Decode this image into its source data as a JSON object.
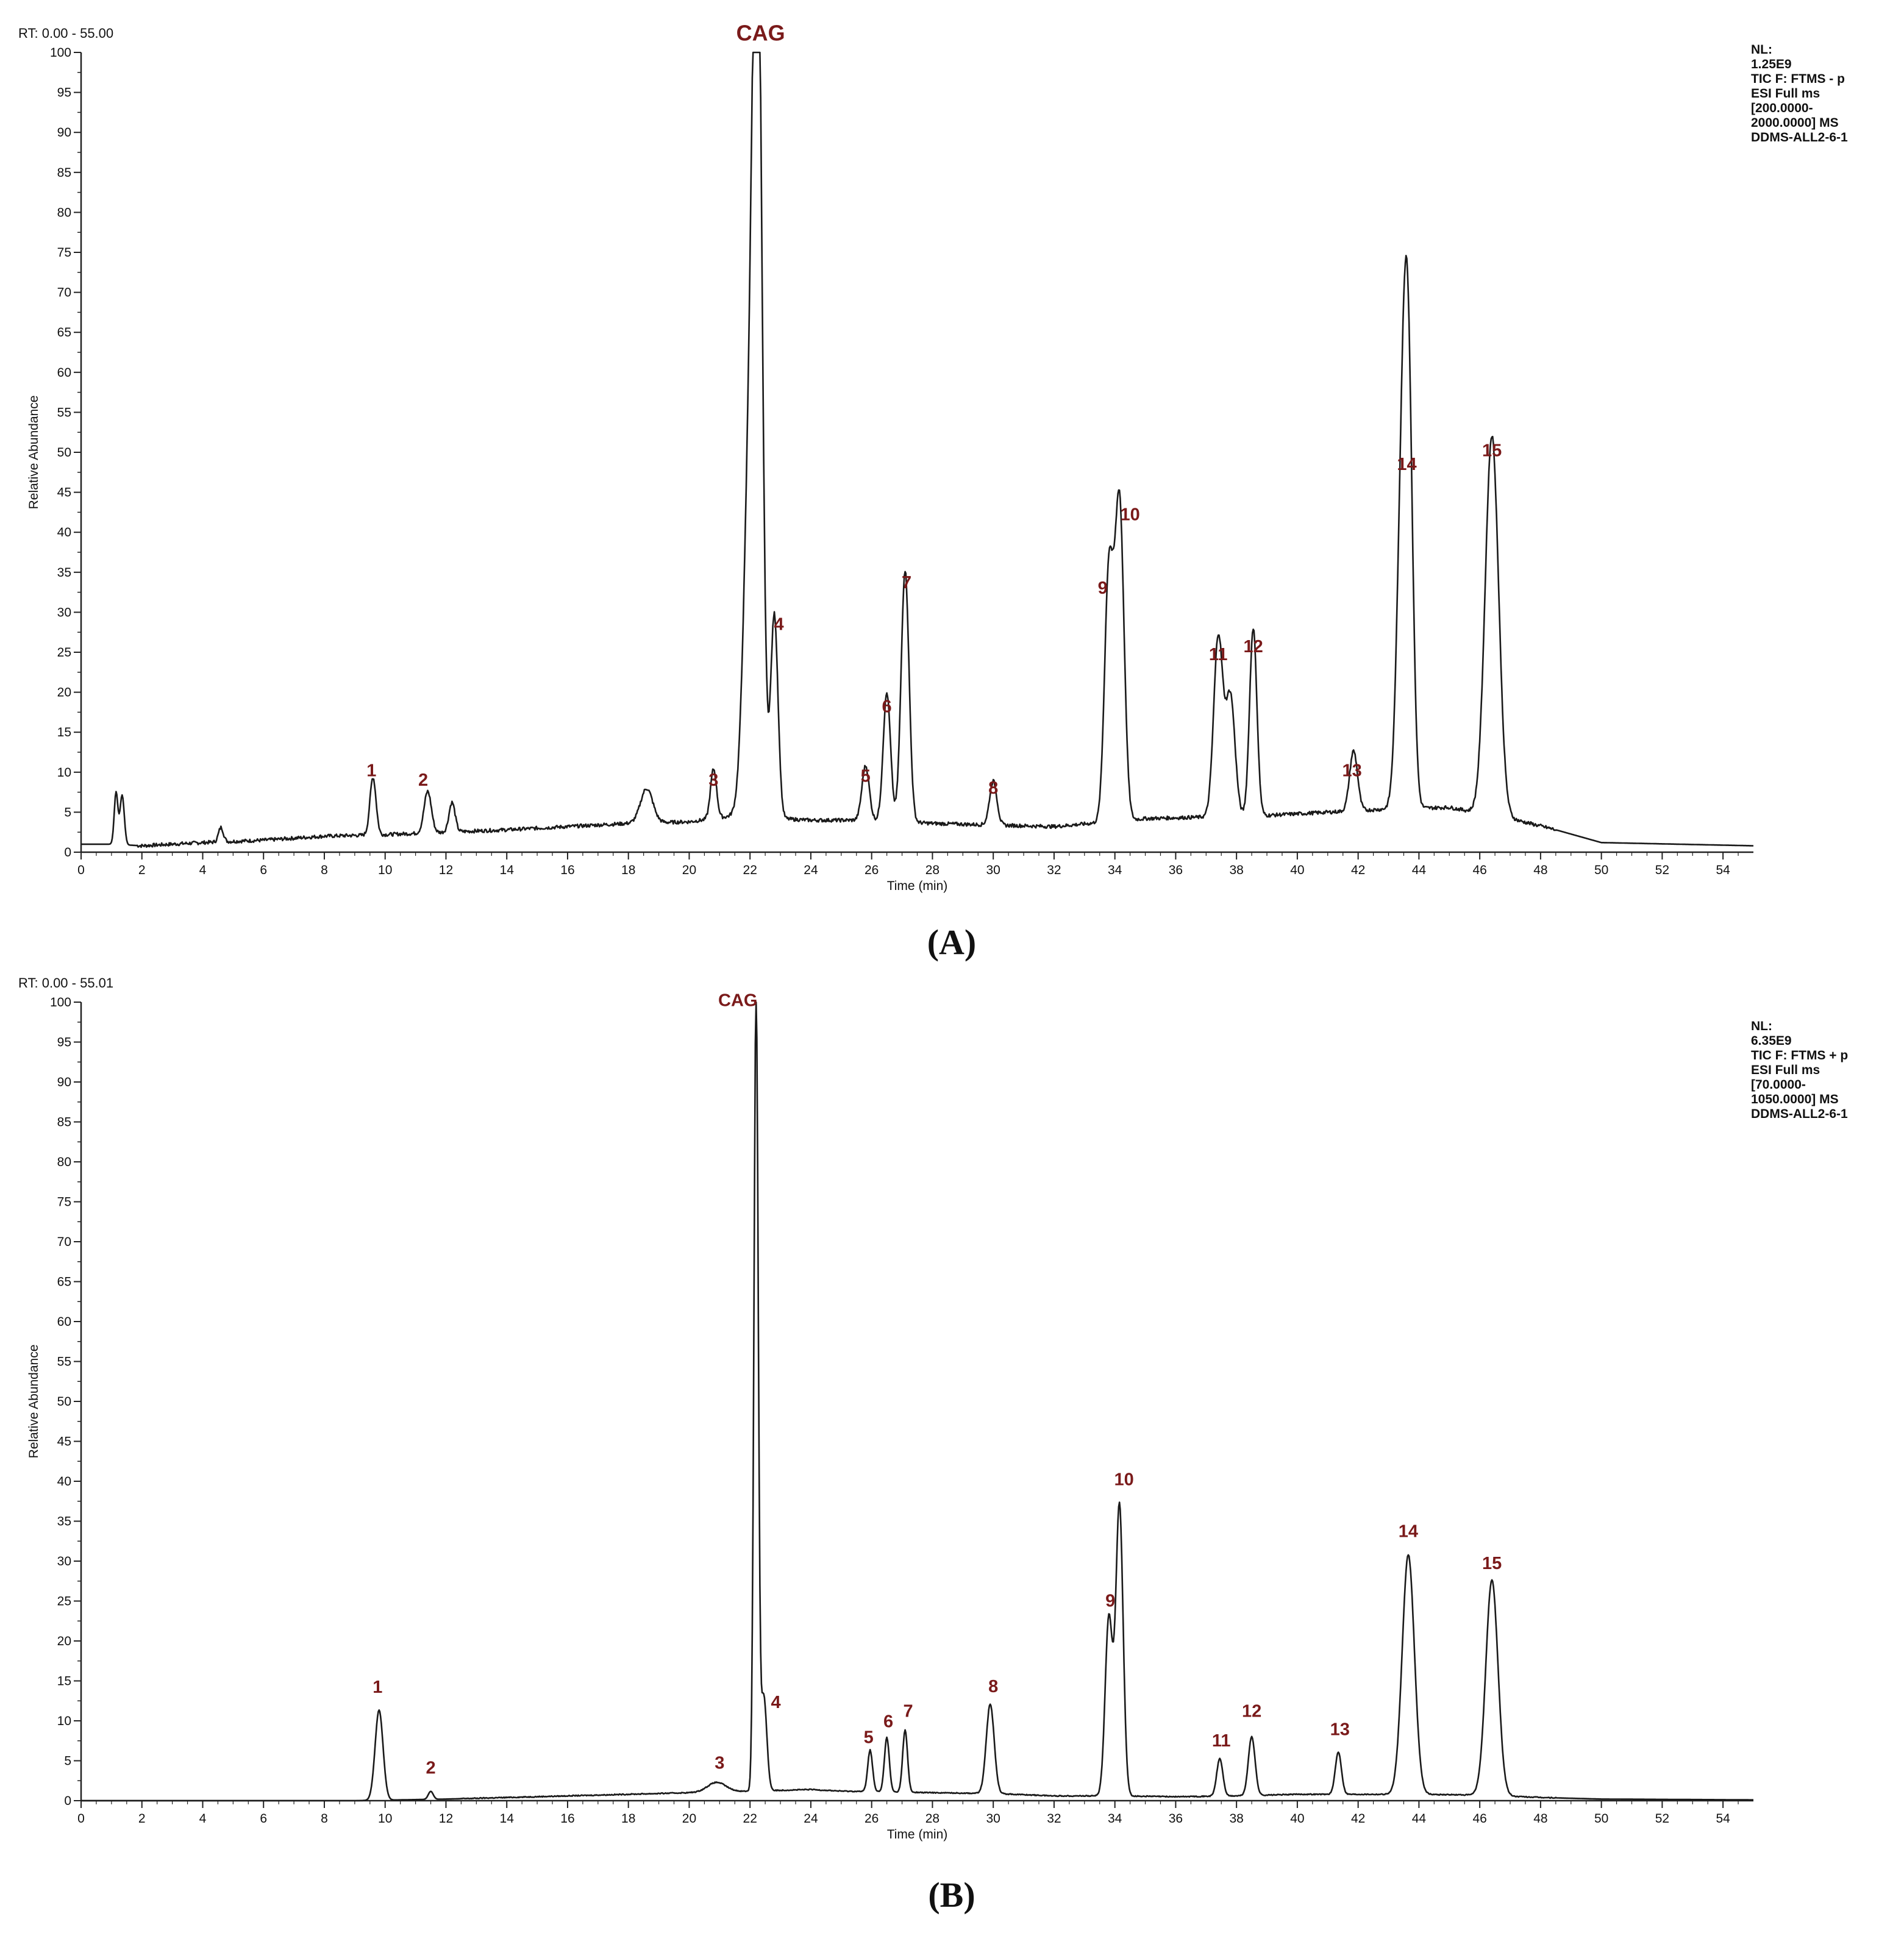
{
  "colors": {
    "trace": "#1a1a1a",
    "axis": "#222222",
    "peak_label": "#7a1a1a",
    "background": "#ffffff"
  },
  "chart_data": [
    {
      "type": "line",
      "panel_label": "(A)",
      "rt_range": "RT: 0.00 - 55.00",
      "info": [
        "NL:",
        "1.25E9",
        "TIC F: FTMS - p",
        "ESI Full ms",
        "[200.0000-",
        "2000.0000] MS",
        "DDMS-ALL2-6-1"
      ],
      "xlabel": "Time (min)",
      "ylabel": "Relative Abundance",
      "xlim": [
        0,
        55
      ],
      "ylim": [
        0,
        100
      ],
      "x_ticks": [
        0,
        2,
        4,
        6,
        8,
        10,
        12,
        14,
        16,
        18,
        20,
        22,
        24,
        26,
        28,
        30,
        32,
        34,
        36,
        38,
        40,
        42,
        44,
        46,
        48,
        50,
        52,
        54
      ],
      "y_ticks": [
        0,
        5,
        10,
        15,
        20,
        25,
        30,
        35,
        40,
        45,
        50,
        55,
        60,
        65,
        70,
        75,
        80,
        85,
        90,
        95,
        100
      ],
      "grid": false,
      "baseline": [
        [
          0,
          1.0
        ],
        [
          1.0,
          1.0
        ],
        [
          2.0,
          0.8
        ],
        [
          4,
          1.2
        ],
        [
          6,
          1.5
        ],
        [
          8,
          2.0
        ],
        [
          10,
          2.2
        ],
        [
          12,
          2.5
        ],
        [
          14,
          2.8
        ],
        [
          16,
          3.2
        ],
        [
          18,
          3.6
        ],
        [
          20,
          3.8
        ],
        [
          21.4,
          4.5
        ],
        [
          24,
          4.0
        ],
        [
          26,
          4.0
        ],
        [
          28,
          3.6
        ],
        [
          30,
          3.4
        ],
        [
          32,
          3.2
        ],
        [
          33.2,
          3.6
        ],
        [
          35,
          4.2
        ],
        [
          37,
          4.4
        ],
        [
          39,
          4.6
        ],
        [
          41,
          5.0
        ],
        [
          43,
          5.4
        ],
        [
          45,
          5.6
        ],
        [
          47,
          4.2
        ],
        [
          48.5,
          2.8
        ],
        [
          50,
          1.2
        ],
        [
          55,
          0.8
        ]
      ],
      "peaks": [
        {
          "rt": 1.15,
          "height": 6.5,
          "width": 0.06
        },
        {
          "rt": 1.35,
          "height": 6.2,
          "width": 0.07
        },
        {
          "rt": 4.6,
          "height": 1.8,
          "width": 0.08
        },
        {
          "rt": 9.6,
          "height": 7.2,
          "width": 0.1
        },
        {
          "rt": 11.4,
          "height": 5.2,
          "width": 0.12
        },
        {
          "rt": 12.2,
          "height": 3.7,
          "width": 0.1
        },
        {
          "rt": 18.6,
          "height": 4.3,
          "width": 0.2
        },
        {
          "rt": 20.8,
          "height": 6.2,
          "width": 0.1
        },
        {
          "rt": 22.0,
          "height": 45,
          "width": 0.2
        },
        {
          "rt": 22.25,
          "height": 100,
          "width": 0.15
        },
        {
          "rt": 22.8,
          "height": 25.5,
          "width": 0.12
        },
        {
          "rt": 25.8,
          "height": 6.8,
          "width": 0.12
        },
        {
          "rt": 26.5,
          "height": 16.0,
          "width": 0.12
        },
        {
          "rt": 27.1,
          "height": 31.5,
          "width": 0.13
        },
        {
          "rt": 30.0,
          "height": 5.5,
          "width": 0.12
        },
        {
          "rt": 33.8,
          "height": 31.0,
          "width": 0.14
        },
        {
          "rt": 34.15,
          "height": 40.0,
          "width": 0.15
        },
        {
          "rt": 37.4,
          "height": 22.5,
          "width": 0.15
        },
        {
          "rt": 37.8,
          "height": 15.0,
          "width": 0.15
        },
        {
          "rt": 38.55,
          "height": 23.5,
          "width": 0.12
        },
        {
          "rt": 41.85,
          "height": 7.5,
          "width": 0.13
        },
        {
          "rt": 43.45,
          "height": 38.0,
          "width": 0.17
        },
        {
          "rt": 43.65,
          "height": 45.5,
          "width": 0.15
        },
        {
          "rt": 46.4,
          "height": 47.5,
          "width": 0.22
        }
      ],
      "peak_labels": [
        {
          "text": "CAG",
          "rt": 22.35,
          "y": 101.5,
          "big": true
        },
        {
          "text": "1",
          "rt": 9.55,
          "y": 9.5
        },
        {
          "text": "2",
          "rt": 11.25,
          "y": 8.3
        },
        {
          "text": "3",
          "rt": 20.8,
          "y": 8.3
        },
        {
          "text": "4",
          "rt": 22.95,
          "y": 27.8
        },
        {
          "text": "5",
          "rt": 25.8,
          "y": 8.8
        },
        {
          "text": "6",
          "rt": 26.5,
          "y": 17.5
        },
        {
          "text": "7",
          "rt": 27.15,
          "y": 33.0
        },
        {
          "text": "8",
          "rt": 30.0,
          "y": 7.3
        },
        {
          "text": "9",
          "rt": 33.6,
          "y": 32.3
        },
        {
          "text": "10",
          "rt": 34.5,
          "y": 41.5
        },
        {
          "text": "11",
          "rt": 37.4,
          "y": 24.0
        },
        {
          "text": "12",
          "rt": 38.55,
          "y": 25.0
        },
        {
          "text": "13",
          "rt": 41.8,
          "y": 9.5
        },
        {
          "text": "14",
          "rt": 43.6,
          "y": 47.8
        },
        {
          "text": "15",
          "rt": 46.4,
          "y": 49.5
        }
      ]
    },
    {
      "type": "line",
      "panel_label": "(B)",
      "rt_range": "RT: 0.00 - 55.01",
      "info": [
        "NL:",
        "6.35E9",
        "TIC F: FTMS + p",
        "ESI Full ms",
        "[70.0000-",
        "1050.0000] MS",
        "DDMS-ALL2-6-1"
      ],
      "xlabel": "Time (min)",
      "ylabel": "Relative Abundance",
      "xlim": [
        0,
        55
      ],
      "ylim": [
        0,
        100
      ],
      "x_ticks": [
        0,
        2,
        4,
        6,
        8,
        10,
        12,
        14,
        16,
        18,
        20,
        22,
        24,
        26,
        28,
        30,
        32,
        34,
        36,
        38,
        40,
        42,
        44,
        46,
        48,
        50,
        52,
        54
      ],
      "y_ticks": [
        0,
        5,
        10,
        15,
        20,
        25,
        30,
        35,
        40,
        45,
        50,
        55,
        60,
        65,
        70,
        75,
        80,
        85,
        90,
        95,
        100
      ],
      "grid": false,
      "baseline": [
        [
          0,
          0
        ],
        [
          9.0,
          0
        ],
        [
          12,
          0.2
        ],
        [
          14,
          0.4
        ],
        [
          16,
          0.6
        ],
        [
          18,
          0.8
        ],
        [
          20,
          1.0
        ],
        [
          22,
          1.2
        ],
        [
          24,
          1.4
        ],
        [
          25,
          1.2
        ],
        [
          28,
          1.0
        ],
        [
          30,
          0.9
        ],
        [
          32,
          0.6
        ],
        [
          34,
          0.6
        ],
        [
          36,
          0.5
        ],
        [
          38,
          0.6
        ],
        [
          40,
          0.8
        ],
        [
          42,
          0.8
        ],
        [
          44,
          0.8
        ],
        [
          46,
          0.7
        ],
        [
          48,
          0.4
        ],
        [
          50,
          0.2
        ],
        [
          55,
          0.1
        ]
      ],
      "peaks": [
        {
          "rt": 9.8,
          "height": 11.3,
          "width": 0.13
        },
        {
          "rt": 11.5,
          "height": 1.0,
          "width": 0.08
        },
        {
          "rt": 20.9,
          "height": 1.2,
          "width": 0.3
        },
        {
          "rt": 22.2,
          "height": 99.5,
          "width": 0.07
        },
        {
          "rt": 22.45,
          "height": 12.0,
          "width": 0.1
        },
        {
          "rt": 25.95,
          "height": 5.2,
          "width": 0.08
        },
        {
          "rt": 26.5,
          "height": 6.8,
          "width": 0.08
        },
        {
          "rt": 27.1,
          "height": 7.8,
          "width": 0.08
        },
        {
          "rt": 29.9,
          "height": 11.2,
          "width": 0.13
        },
        {
          "rt": 33.8,
          "height": 22.3,
          "width": 0.12
        },
        {
          "rt": 34.15,
          "height": 36.5,
          "width": 0.12
        },
        {
          "rt": 37.45,
          "height": 4.7,
          "width": 0.1
        },
        {
          "rt": 38.5,
          "height": 7.4,
          "width": 0.11
        },
        {
          "rt": 41.35,
          "height": 5.3,
          "width": 0.1
        },
        {
          "rt": 43.65,
          "height": 30.0,
          "width": 0.2
        },
        {
          "rt": 46.4,
          "height": 27.0,
          "width": 0.2
        }
      ],
      "peak_labels": [
        {
          "text": "CAG",
          "rt": 21.6,
          "y": 99.5,
          "big": false
        },
        {
          "text": "1",
          "rt": 9.75,
          "y": 13.5
        },
        {
          "text": "2",
          "rt": 11.5,
          "y": 3.4
        },
        {
          "text": "3",
          "rt": 21.0,
          "y": 4.0
        },
        {
          "text": "4",
          "rt": 22.85,
          "y": 11.6
        },
        {
          "text": "5",
          "rt": 25.9,
          "y": 7.2
        },
        {
          "text": "6",
          "rt": 26.55,
          "y": 9.2
        },
        {
          "text": "7",
          "rt": 27.2,
          "y": 10.5
        },
        {
          "text": "8",
          "rt": 30.0,
          "y": 13.6
        },
        {
          "text": "9",
          "rt": 33.85,
          "y": 24.3
        },
        {
          "text": "10",
          "rt": 34.3,
          "y": 39.5
        },
        {
          "text": "11",
          "rt": 37.5,
          "y": 6.8
        },
        {
          "text": "12",
          "rt": 38.5,
          "y": 10.5
        },
        {
          "text": "13",
          "rt": 41.4,
          "y": 8.2
        },
        {
          "text": "14",
          "rt": 43.65,
          "y": 33.0
        },
        {
          "text": "15",
          "rt": 46.4,
          "y": 29.0
        }
      ]
    }
  ]
}
